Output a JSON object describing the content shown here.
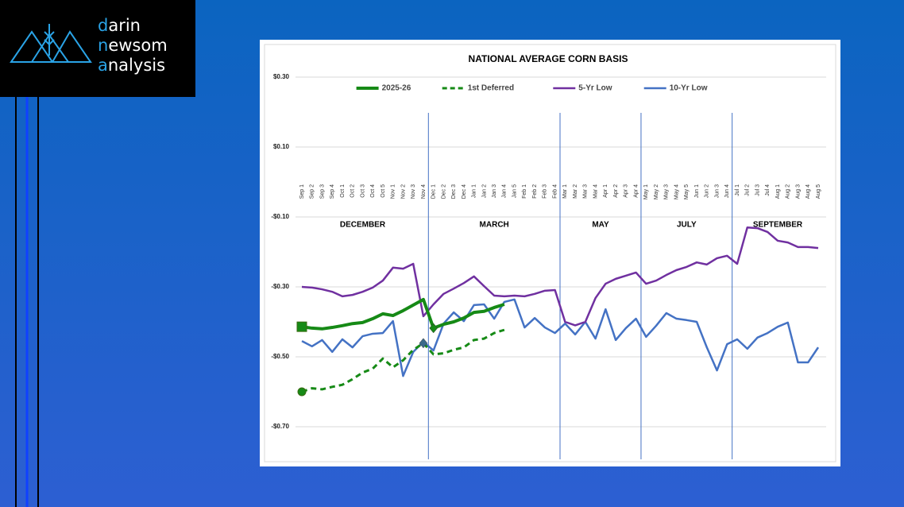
{
  "logo": [
    "darin",
    "newsom",
    "analysis"
  ],
  "chart_data": {
    "type": "line",
    "title": "NATIONAL AVERAGE CORN BASIS",
    "categories": [
      "Sep 1",
      "Sep 2",
      "Sep 3",
      "Sep 4",
      "Oct 1",
      "Oct 2",
      "Oct 3",
      "Oct 4",
      "Oct 5",
      "Nov 1",
      "Nov 2",
      "Nov 3",
      "Nov 4",
      "Dec 1",
      "Dec 2",
      "Dec 3",
      "Dec 4",
      "Jan 1",
      "Jan 2",
      "Jan 3",
      "Jan 4",
      "Jan 5",
      "Feb 1",
      "Feb 2",
      "Feb 3",
      "Feb 4",
      "Mar 1",
      "Mar 2",
      "Mar 3",
      "Mar 4",
      "Apr 1",
      "Apr 2",
      "Apr 3",
      "Apr 4",
      "May 1",
      "May 2",
      "May 3",
      "May 4",
      "May 5",
      "Jun 1",
      "Jun 2",
      "Jun 3",
      "Jun 4",
      "Jul 1",
      "Jul 2",
      "Jul 3",
      "Jul 4",
      "Aug 1",
      "Aug 2",
      "Aug 3",
      "Aug 4",
      "Aug 5"
    ],
    "periods": [
      {
        "label": "DECEMBER",
        "from": "Sep 1",
        "to": "Nov 4"
      },
      {
        "label": "MARCH",
        "from": "Dec 1",
        "to": "Feb 4"
      },
      {
        "label": "MAY",
        "from": "Mar 1",
        "to": "Apr 4"
      },
      {
        "label": "JULY",
        "from": "May 1",
        "to": "Jun 4"
      },
      {
        "label": "SEPTEMBER",
        "from": "Jul 1",
        "to": "Aug 5"
      }
    ],
    "series": [
      {
        "name": "2025-26",
        "color": "#168a16",
        "width": 4,
        "dash": false,
        "start_marker": "square",
        "highlight": 13,
        "values": [
          -0.414,
          -0.418,
          -0.42,
          -0.416,
          -0.411,
          -0.405,
          -0.402,
          -0.391,
          -0.377,
          -0.382,
          -0.368,
          -0.352,
          -0.336,
          -0.418,
          -0.407,
          -0.4,
          -0.389,
          -0.373,
          -0.37,
          -0.359,
          -0.35,
          null,
          null,
          null,
          null,
          null,
          null,
          null,
          null,
          null,
          null,
          null,
          null,
          null,
          null,
          null,
          null,
          null,
          null,
          null,
          null,
          null,
          null,
          null,
          null,
          null,
          null,
          null,
          null,
          null,
          null,
          null
        ]
      },
      {
        "name": "1st Deferred",
        "color": "#168a16",
        "width": 3,
        "dash": true,
        "start_marker": "circle",
        "highlight": 12,
        "values": [
          -0.6,
          -0.59,
          -0.593,
          -0.586,
          -0.58,
          -0.564,
          -0.545,
          -0.534,
          -0.505,
          -0.53,
          -0.51,
          -0.48,
          -0.461,
          -0.493,
          -0.49,
          -0.48,
          -0.473,
          -0.452,
          -0.448,
          -0.432,
          -0.423,
          null,
          null,
          null,
          null,
          null,
          null,
          null,
          null,
          null,
          null,
          null,
          null,
          null,
          null,
          null,
          null,
          null,
          null,
          null,
          null,
          null,
          null,
          null,
          null,
          null,
          null,
          null,
          null,
          null,
          null,
          null
        ]
      },
      {
        "name": "5-Yr Low",
        "color": "#7030a0",
        "width": 2.5,
        "dash": false,
        "values": [
          -0.3,
          -0.302,
          -0.307,
          -0.314,
          -0.327,
          -0.323,
          -0.314,
          -0.302,
          -0.282,
          -0.245,
          -0.248,
          -0.234,
          -0.384,
          -0.35,
          -0.32,
          -0.305,
          -0.289,
          -0.27,
          -0.298,
          -0.325,
          -0.327,
          -0.325,
          -0.327,
          -0.32,
          -0.311,
          -0.309,
          -0.4,
          -0.41,
          -0.4,
          -0.332,
          -0.291,
          -0.277,
          -0.268,
          -0.259,
          -0.291,
          -0.282,
          -0.266,
          -0.252,
          -0.243,
          -0.23,
          -0.236,
          -0.218,
          -0.211,
          -0.234,
          -0.13,
          -0.132,
          -0.143,
          -0.168,
          -0.173,
          -0.186,
          -0.186,
          -0.189
        ]
      },
      {
        "name": "10-Yr Low",
        "color": "#4472c4",
        "width": 2.5,
        "dash": false,
        "values": [
          -0.455,
          -0.47,
          -0.452,
          -0.486,
          -0.45,
          -0.473,
          -0.441,
          -0.434,
          -0.432,
          -0.398,
          -0.555,
          -0.486,
          -0.457,
          -0.482,
          -0.405,
          -0.373,
          -0.398,
          -0.352,
          -0.35,
          -0.391,
          -0.343,
          -0.336,
          -0.416,
          -0.389,
          -0.416,
          -0.432,
          -0.405,
          -0.436,
          -0.4,
          -0.448,
          -0.364,
          -0.452,
          -0.418,
          -0.391,
          -0.443,
          -0.411,
          -0.375,
          -0.391,
          -0.395,
          -0.4,
          -0.473,
          -0.539,
          -0.464,
          -0.45,
          -0.477,
          -0.445,
          -0.432,
          -0.414,
          -0.402,
          -0.516,
          -0.516,
          -0.473
        ]
      }
    ],
    "ylim": [
      -0.8,
      0.3
    ],
    "yticks": [
      {
        "value": 0.3,
        "label": "$0.30"
      },
      {
        "value": 0.1,
        "label": "$0.10"
      },
      {
        "value": -0.1,
        "label": "-$0.10"
      },
      {
        "value": -0.3,
        "label": "-$0.30"
      },
      {
        "value": -0.5,
        "label": "-$0.50"
      },
      {
        "value": -0.7,
        "label": "-$0.70"
      }
    ],
    "grid": true,
    "legend": "top"
  }
}
